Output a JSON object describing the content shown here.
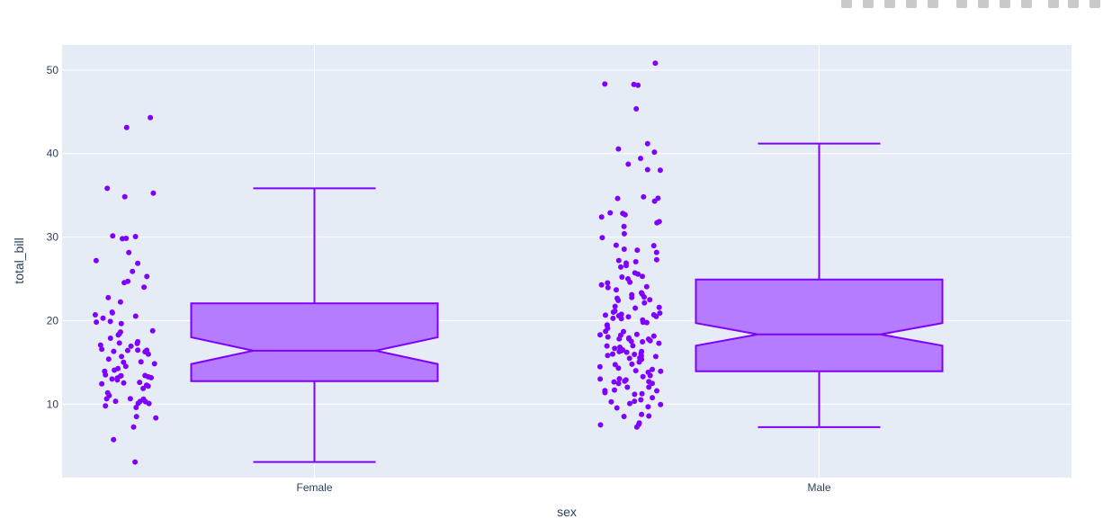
{
  "modebar": {
    "buttons": [
      "camera-icon",
      "zoom-icon",
      "pan-icon",
      "box-select-icon",
      "lasso-icon",
      "zoom-in-icon",
      "zoom-out-icon",
      "autoscale-icon",
      "home-icon",
      "more-icon",
      "spike-icon",
      "hover-compare-icon"
    ]
  },
  "colors": {
    "plot_bg": "#e5ecf6",
    "grid": "#ffffff",
    "marker": "#7f00ff",
    "box_fill": "#b276ff",
    "box_line": "#7f00ff"
  },
  "chart_data": {
    "type": "box",
    "title": "",
    "xlabel": "sex",
    "ylabel": "total_bill",
    "categories": [
      "Female",
      "Male"
    ],
    "ylim": [
      1.2,
      53.0
    ],
    "yticks": [
      10,
      20,
      30,
      40,
      50
    ],
    "grid": true,
    "notched": true,
    "points": "all",
    "boxes": [
      {
        "category": "Female",
        "min": 3.07,
        "q1": 12.75,
        "median": 16.4,
        "q3": 22.07,
        "max": 35.83,
        "notch_low": 14.8,
        "notch_high": 18.0
      },
      {
        "category": "Male",
        "min": 7.25,
        "q1": 13.93,
        "median": 18.35,
        "q3": 24.92,
        "max": 41.19,
        "notch_low": 17.0,
        "notch_high": 19.7
      }
    ],
    "points_data": {
      "Female": [
        3.07,
        5.75,
        7.25,
        8.35,
        8.51,
        9.6,
        9.78,
        10.07,
        10.09,
        10.29,
        10.33,
        10.34,
        10.59,
        10.63,
        10.65,
        11.02,
        11.35,
        11.87,
        12.16,
        12.26,
        12.43,
        12.54,
        12.6,
        12.9,
        13.0,
        13.13,
        13.16,
        13.27,
        13.37,
        13.39,
        13.42,
        13.51,
        13.94,
        14.07,
        14.26,
        14.52,
        14.83,
        15.01,
        15.06,
        15.38,
        15.69,
        15.98,
        16.27,
        16.32,
        16.43,
        16.45,
        16.47,
        16.58,
        16.93,
        17.07,
        17.26,
        17.31,
        17.47,
        17.89,
        18.28,
        18.43,
        18.64,
        18.78,
        19.65,
        19.82,
        19.89,
        20.29,
        20.53,
        20.69,
        20.92,
        21.01,
        22.23,
        22.75,
        24.01,
        24.55,
        24.71,
        25.28,
        25.89,
        26.86,
        27.18,
        28.15,
        29.8,
        29.85,
        30.06,
        30.14,
        34.83,
        35.26,
        35.83,
        43.11,
        44.3
      ],
      "Male": [
        7.25,
        7.51,
        7.56,
        7.74,
        8.52,
        8.58,
        8.77,
        9.55,
        9.68,
        9.94,
        10.07,
        10.27,
        10.34,
        10.51,
        10.77,
        11.17,
        11.24,
        11.38,
        11.59,
        11.61,
        11.69,
        12.02,
        12.03,
        12.46,
        12.48,
        12.66,
        12.69,
        12.74,
        12.9,
        13.0,
        13.03,
        13.28,
        13.42,
        13.81,
        13.94,
        14.0,
        14.15,
        14.31,
        14.48,
        14.73,
        14.78,
        15.04,
        15.36,
        15.42,
        15.48,
        15.53,
        15.69,
        15.77,
        15.81,
        15.95,
        16.0,
        16.04,
        16.21,
        16.29,
        16.31,
        16.4,
        16.49,
        16.66,
        16.82,
        16.97,
        16.99,
        17.29,
        17.46,
        17.51,
        17.59,
        17.78,
        17.81,
        17.82,
        17.92,
        18.04,
        18.15,
        18.24,
        18.29,
        18.35,
        18.69,
        18.71,
        19.08,
        19.44,
        19.49,
        19.77,
        19.81,
        20.08,
        20.23,
        20.27,
        20.45,
        20.49,
        20.58,
        20.65,
        20.69,
        20.76,
        20.9,
        21.01,
        21.16,
        21.5,
        21.58,
        21.7,
        22.12,
        22.42,
        22.49,
        22.67,
        22.76,
        22.82,
        23.1,
        23.17,
        23.33,
        23.68,
        23.95,
        24.06,
        24.27,
        24.52,
        24.59,
        25.0,
        25.21,
        25.29,
        25.56,
        25.71,
        26.41,
        26.59,
        26.88,
        27.05,
        27.2,
        27.28,
        28.17,
        28.44,
        28.55,
        28.97,
        29.03,
        29.93,
        30.4,
        31.27,
        31.71,
        31.85,
        32.4,
        32.68,
        32.83,
        32.9,
        34.3,
        34.63,
        34.65,
        34.81,
        38.01,
        38.07,
        38.73,
        39.42,
        40.17,
        40.55,
        41.19,
        45.35,
        48.17,
        48.27,
        48.33,
        50.81
      ]
    }
  }
}
